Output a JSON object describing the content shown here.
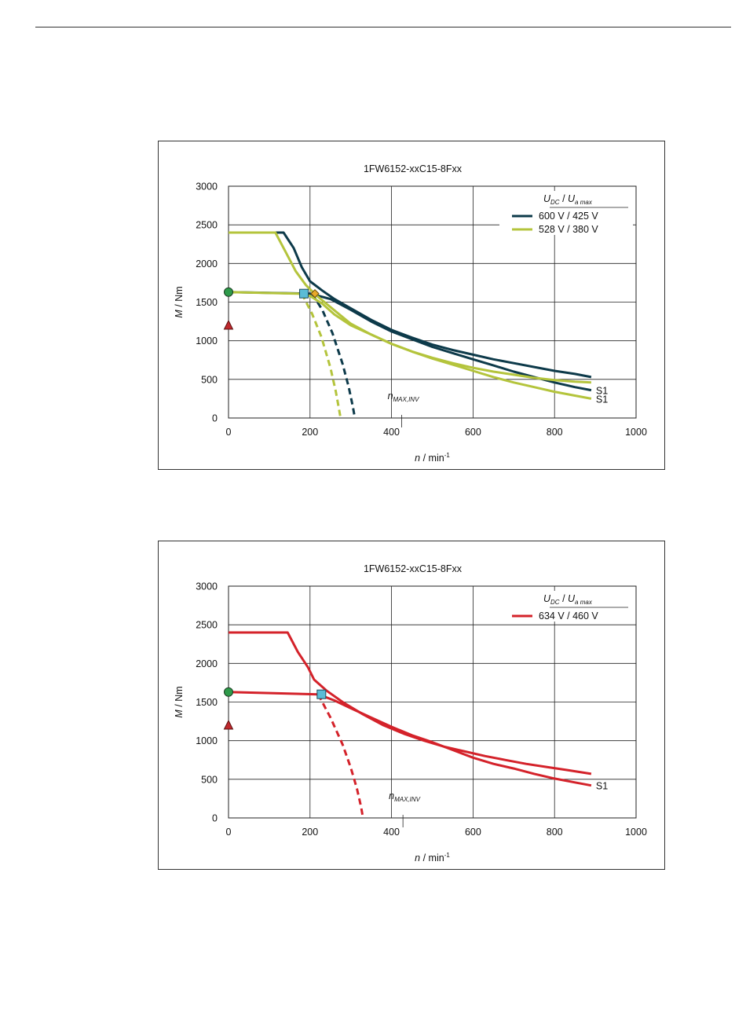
{
  "chart_data": [
    {
      "type": "line",
      "title": "1FW6152-xxC15-8Fxx",
      "xlabel_var": "n",
      "xlabel_unit": " / min",
      "xlabel_exp": "-1",
      "ylabel_var": "M",
      "ylabel_unit": " / Nm",
      "xlim": [
        0,
        1000
      ],
      "ylim": [
        0,
        3000
      ],
      "xticks": [
        "0",
        "200",
        "400",
        "600",
        "800",
        "1000"
      ],
      "yticks": [
        "0",
        "500",
        "1000",
        "1500",
        "2000",
        "2500",
        "3000"
      ],
      "grid": true,
      "legend_placement": "top-right",
      "legend_header": {
        "u_dc": "U",
        "u_dc_sub": "DC",
        "sep": " / ",
        "u_a": "U",
        "u_a_sub": "a max"
      },
      "annotation": {
        "text": "n",
        "sub": "MAX,INV",
        "x": 425
      },
      "markers": [
        {
          "shape": "circle",
          "color": "#2e9a4a",
          "x": 0,
          "y": 1630
        },
        {
          "shape": "triangle",
          "color": "#c0282d",
          "x": 0,
          "y": 1200
        },
        {
          "shape": "square",
          "color": "#5bbcd6",
          "x": 185,
          "y": 1610
        },
        {
          "shape": "diamond",
          "color": "#e8a92b",
          "x": 212,
          "y": 1610
        }
      ],
      "series": [
        {
          "name": "600 V / 425 V",
          "color": "#0d3a4a",
          "peak": {
            "x": [
              0,
              135,
              160,
              180,
              200,
              230,
              260,
              300,
              350,
              400,
              450,
              500,
              550,
              600,
              650,
              700,
              750,
              800,
              850,
              890
            ],
            "y": [
              2400,
              2400,
              2200,
              1950,
              1770,
              1650,
              1540,
              1420,
              1270,
              1140,
              1040,
              950,
              880,
              820,
              760,
              710,
              660,
              610,
              570,
              530
            ]
          },
          "s1": {
            "x": [
              0,
              200,
              250,
              300,
              350,
              400,
              450,
              500,
              550,
              600,
              650,
              700,
              750,
              800,
              850,
              890
            ],
            "y": [
              1630,
              1610,
              1540,
              1400,
              1250,
              1120,
              1020,
              920,
              840,
              760,
              680,
              600,
              530,
              460,
              400,
              360
            ]
          },
          "field_weakening": {
            "x": [
              205,
              230,
              255,
              280,
              295,
              305,
              310
            ],
            "y": [
              1610,
              1400,
              1100,
              700,
              400,
              150,
              0
            ]
          },
          "s1_label": "S1"
        },
        {
          "name": "528 V / 380 V",
          "color": "#b4c43c",
          "peak": {
            "x": [
              0,
              115,
              140,
              165,
              190,
              215,
              240,
              270,
              300,
              350,
              400,
              450,
              500,
              550,
              600,
              650,
              700,
              750,
              800,
              850,
              890
            ],
            "y": [
              2400,
              2400,
              2150,
              1900,
              1720,
              1590,
              1480,
              1350,
              1220,
              1080,
              960,
              860,
              780,
              710,
              650,
              600,
              560,
              520,
              490,
              470,
              460
            ]
          },
          "s1": {
            "x": [
              0,
              170,
              200,
              230,
              260,
              300,
              350,
              400,
              450,
              500,
              550,
              600,
              650,
              700,
              750,
              800,
              850,
              890
            ],
            "y": [
              1630,
              1610,
              1580,
              1480,
              1340,
              1200,
              1080,
              960,
              860,
              770,
              690,
              610,
              530,
              460,
              400,
              340,
              290,
              250
            ]
          },
          "field_weakening": {
            "x": [
              180,
              205,
              228,
              250,
              263,
              270,
              275
            ],
            "y": [
              1610,
              1350,
              1050,
              650,
              350,
              150,
              0
            ]
          },
          "s1_label": "S1"
        }
      ]
    },
    {
      "type": "line",
      "title": "1FW6152-xxC15-8Fxx",
      "xlabel_var": "n",
      "xlabel_unit": " / min",
      "xlabel_exp": "-1",
      "ylabel_var": "M",
      "ylabel_unit": " / Nm",
      "xlim": [
        0,
        1000
      ],
      "ylim": [
        0,
        3000
      ],
      "xticks": [
        "0",
        "200",
        "400",
        "600",
        "800",
        "1000"
      ],
      "yticks": [
        "0",
        "500",
        "1000",
        "1500",
        "2000",
        "2500",
        "3000"
      ],
      "grid": true,
      "legend_placement": "top-right",
      "legend_header": {
        "u_dc": "U",
        "u_dc_sub": "DC",
        "sep": " / ",
        "u_a": "U",
        "u_a_sub": "a max"
      },
      "annotation": {
        "text": "n",
        "sub": "MAX,INV",
        "x": 428
      },
      "markers": [
        {
          "shape": "circle",
          "color": "#2e9a4a",
          "x": 0,
          "y": 1630
        },
        {
          "shape": "triangle",
          "color": "#c0282d",
          "x": 0,
          "y": 1200
        },
        {
          "shape": "square",
          "color": "#5bbcd6",
          "x": 228,
          "y": 1600
        }
      ],
      "series": [
        {
          "name": "634 V / 460 V",
          "color": "#d4222a",
          "peak": {
            "x": [
              0,
              145,
              170,
              195,
              210,
              240,
              280,
              330,
              380,
              430,
              480,
              530,
              580,
              630,
              680,
              730,
              780,
              830,
              890
            ],
            "y": [
              2400,
              2400,
              2150,
              1950,
              1790,
              1650,
              1500,
              1340,
              1200,
              1090,
              1000,
              920,
              860,
              800,
              750,
              700,
              660,
              620,
              570
            ]
          },
          "s1": {
            "x": [
              0,
              220,
              260,
              300,
              350,
              400,
              450,
              500,
              550,
              600,
              650,
              700,
              750,
              800,
              850,
              890
            ],
            "y": [
              1630,
              1600,
              1520,
              1420,
              1300,
              1180,
              1070,
              980,
              880,
              780,
              700,
              640,
              570,
              510,
              460,
              420
            ]
          },
          "field_weakening": {
            "x": [
              220,
              250,
              280,
              300,
              315,
              325,
              330
            ],
            "y": [
              1600,
              1300,
              950,
              650,
              380,
              150,
              0
            ]
          },
          "s1_label": "S1"
        }
      ]
    }
  ]
}
